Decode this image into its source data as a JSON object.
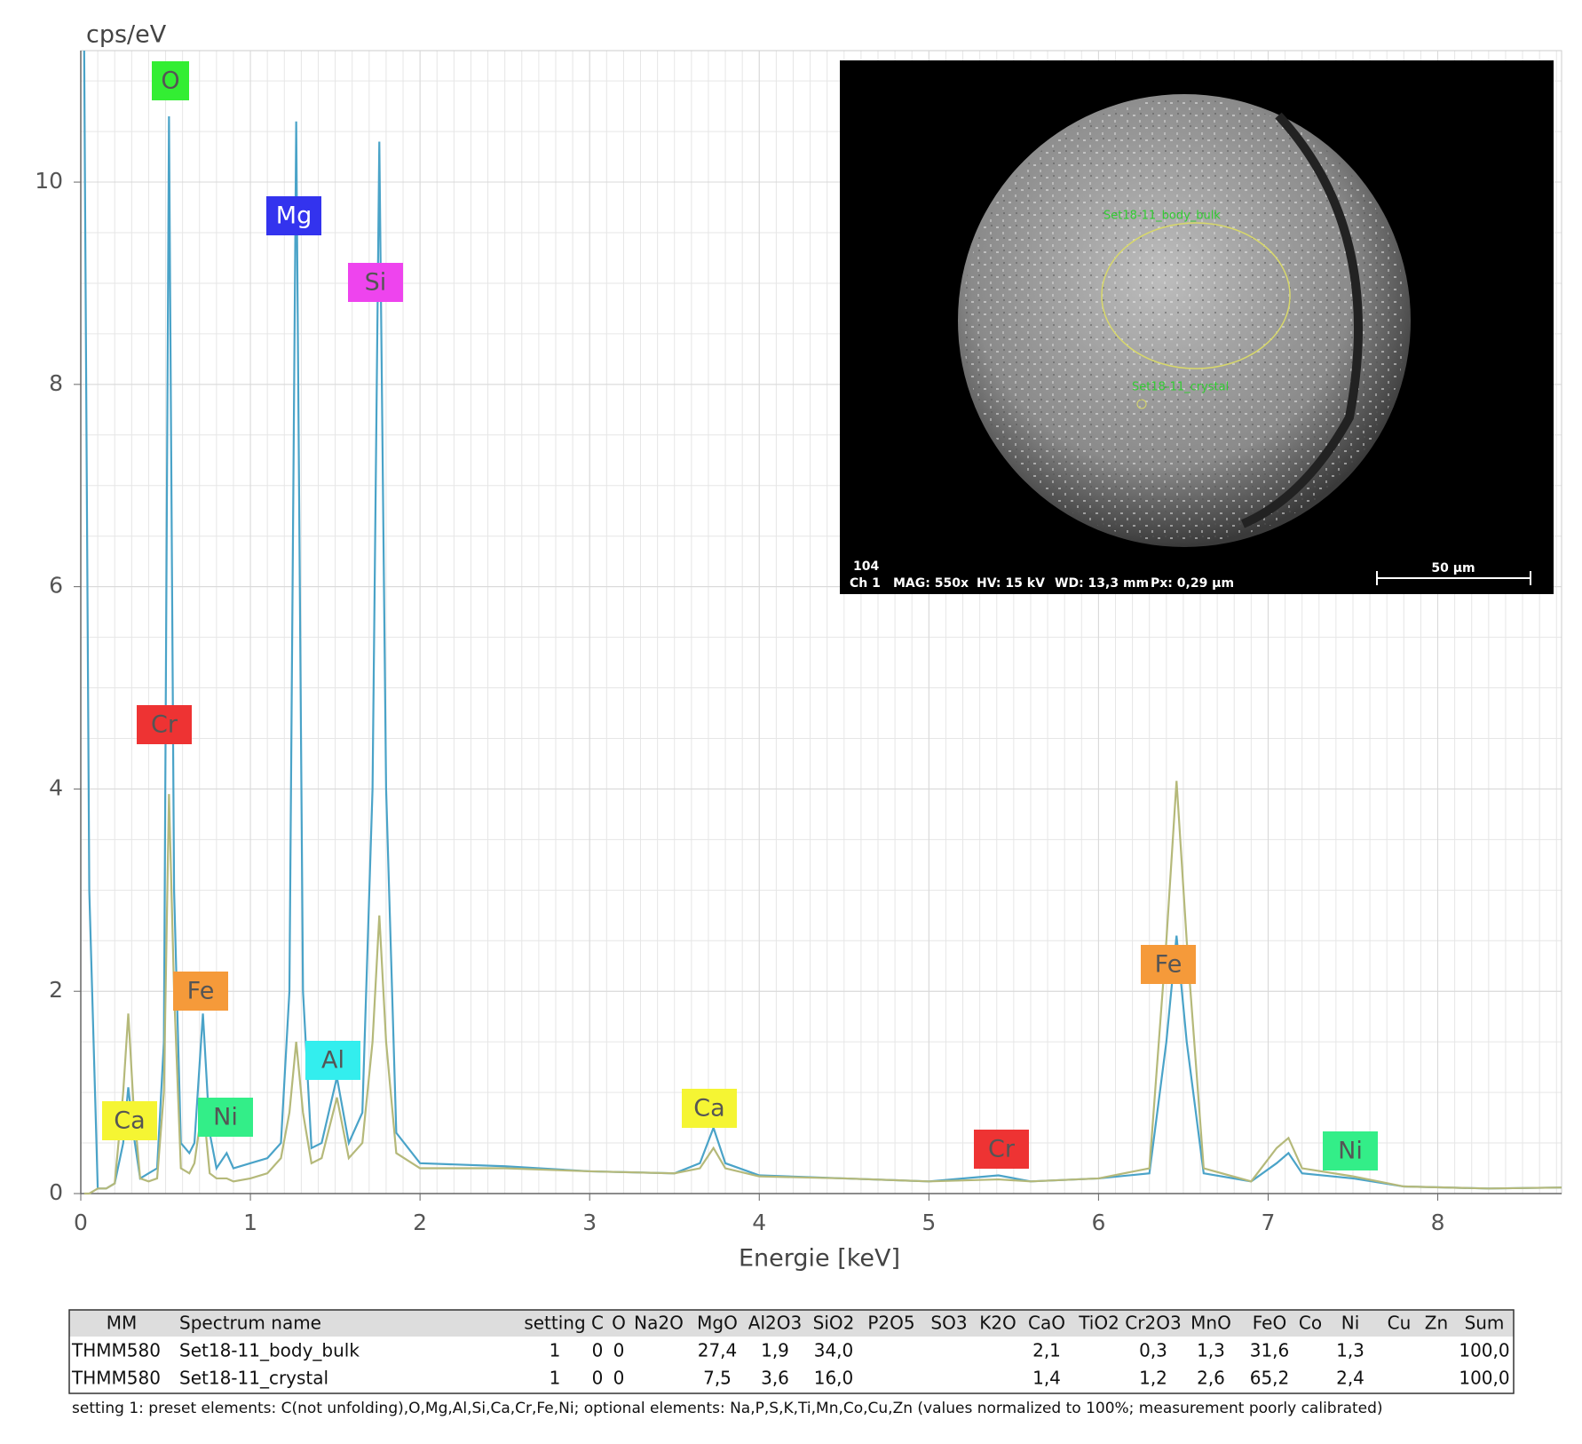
{
  "chart_data": {
    "type": "line",
    "ylabel": "cps/eV",
    "xlabel": "Energie [keV]",
    "xlim": [
      0,
      8.73
    ],
    "ylim": [
      0,
      11.3
    ],
    "xticks": [
      0,
      1,
      2,
      3,
      4,
      5,
      6,
      7,
      8
    ],
    "yticks": [
      0,
      2,
      4,
      6,
      8,
      10
    ],
    "grid": true,
    "x": [
      0.02,
      0.05,
      0.1,
      0.15,
      0.2,
      0.25,
      0.28,
      0.31,
      0.35,
      0.4,
      0.45,
      0.49,
      0.52,
      0.55,
      0.59,
      0.64,
      0.67,
      0.72,
      0.76,
      0.8,
      0.86,
      0.9,
      1.0,
      1.1,
      1.18,
      1.23,
      1.27,
      1.31,
      1.36,
      1.42,
      1.51,
      1.58,
      1.66,
      1.72,
      1.76,
      1.8,
      1.86,
      2.0,
      2.5,
      3.0,
      3.5,
      3.65,
      3.73,
      3.8,
      4.0,
      4.5,
      5.0,
      5.41,
      5.6,
      6.0,
      6.3,
      6.4,
      6.46,
      6.52,
      6.62,
      6.9,
      7.05,
      7.12,
      7.2,
      7.5,
      7.8,
      8.3,
      8.73
    ],
    "series": [
      {
        "name": "Set18-11_body_bulk",
        "color": "#4aa3c8",
        "values": [
          11.3,
          3,
          0.05,
          0.05,
          0.1,
          0.5,
          1.05,
          0.6,
          0.15,
          0.2,
          0.25,
          1.5,
          10.65,
          3.0,
          0.5,
          0.4,
          0.5,
          1.78,
          0.6,
          0.25,
          0.4,
          0.25,
          0.3,
          0.35,
          0.5,
          2.0,
          10.6,
          2.0,
          0.45,
          0.5,
          1.15,
          0.5,
          0.8,
          4,
          10.4,
          4,
          0.6,
          0.3,
          0.27,
          0.22,
          0.2,
          0.3,
          0.65,
          0.3,
          0.18,
          0.15,
          0.12,
          0.18,
          0.12,
          0.15,
          0.2,
          1.5,
          2.55,
          1.5,
          0.2,
          0.12,
          0.3,
          0.4,
          0.2,
          0.15,
          0.07,
          0.05,
          0.06
        ]
      },
      {
        "name": "Set18-11_crystal",
        "color": "#b5b97a",
        "values": [
          0,
          0,
          0.05,
          0.05,
          0.1,
          1.0,
          1.78,
          0.9,
          0.15,
          0.12,
          0.15,
          1.0,
          3.95,
          2.0,
          0.25,
          0.2,
          0.3,
          0.9,
          0.2,
          0.15,
          0.15,
          0.12,
          0.15,
          0.2,
          0.35,
          0.8,
          1.5,
          0.8,
          0.3,
          0.35,
          0.95,
          0.35,
          0.5,
          1.5,
          2.75,
          1.5,
          0.4,
          0.25,
          0.25,
          0.22,
          0.2,
          0.25,
          0.45,
          0.25,
          0.17,
          0.15,
          0.12,
          0.14,
          0.12,
          0.15,
          0.25,
          2.5,
          4.08,
          2.5,
          0.25,
          0.12,
          0.45,
          0.55,
          0.25,
          0.17,
          0.07,
          0.05,
          0.06
        ]
      }
    ],
    "annotations": [
      {
        "text": "O",
        "color": "#33ee33"
      },
      {
        "text": "Mg",
        "color": "#3333ee"
      },
      {
        "text": "Si",
        "color": "#ee44ee"
      },
      {
        "text": "Cr",
        "color": "#ee3333"
      },
      {
        "text": "Fe",
        "color": "#f59a3a"
      },
      {
        "text": "Al",
        "color": "#33eeee"
      },
      {
        "text": "Ca",
        "color": "#f5f533"
      },
      {
        "text": "Ni",
        "color": "#33ee88"
      },
      {
        "text": "Ca",
        "color": "#f5f533"
      },
      {
        "text": "Cr",
        "color": "#ee3333"
      },
      {
        "text": "Fe",
        "color": "#f59a3a"
      },
      {
        "text": "Ni",
        "color": "#33ee88"
      }
    ]
  },
  "inset": {
    "region_labels": [
      "Set18-11_body_bulk",
      "Set18-11_crystal"
    ],
    "info": [
      "104",
      "Ch 1",
      "MAG: 550x",
      "HV: 15 kV",
      "WD: 13,3 mm",
      "Px: 0,29 µm"
    ],
    "scale_bar": "50 µm"
  },
  "table": {
    "header": [
      "MM",
      "Spectrum name",
      "setting",
      "C",
      "O",
      "Na2O",
      "MgO",
      "Al2O3",
      "SiO2",
      "P2O5",
      "SO3",
      "K2O",
      "CaO",
      "TiO2",
      "Cr2O3",
      "MnO",
      "FeO",
      "Co",
      "Ni",
      "Cu",
      "Zn",
      "Sum"
    ],
    "rows": [
      [
        "THMM580",
        "Set18-11_body_bulk",
        "1",
        "0",
        "0",
        null,
        "27,4",
        "1,9",
        "34,0",
        null,
        null,
        null,
        "2,1",
        null,
        "0,3",
        "1,3",
        "31,6",
        null,
        "1,3",
        null,
        null,
        "100,0"
      ],
      [
        "THMM580",
        "Set18-11_crystal",
        "1",
        "0",
        "0",
        null,
        "7,5",
        "3,6",
        "16,0",
        null,
        null,
        null,
        "1,4",
        null,
        "1,2",
        "2,6",
        "65,2",
        null,
        "2,4",
        null,
        null,
        "100,0"
      ]
    ]
  },
  "footnote": "setting 1: preset elements: C(not unfolding),O,Mg,Al,Si,Ca,Cr,Fe,Ni; optional elements: Na,P,S,K,Ti,Mn,Co,Cu,Zn (values normalized to 100%; measurement poorly calibrated)"
}
